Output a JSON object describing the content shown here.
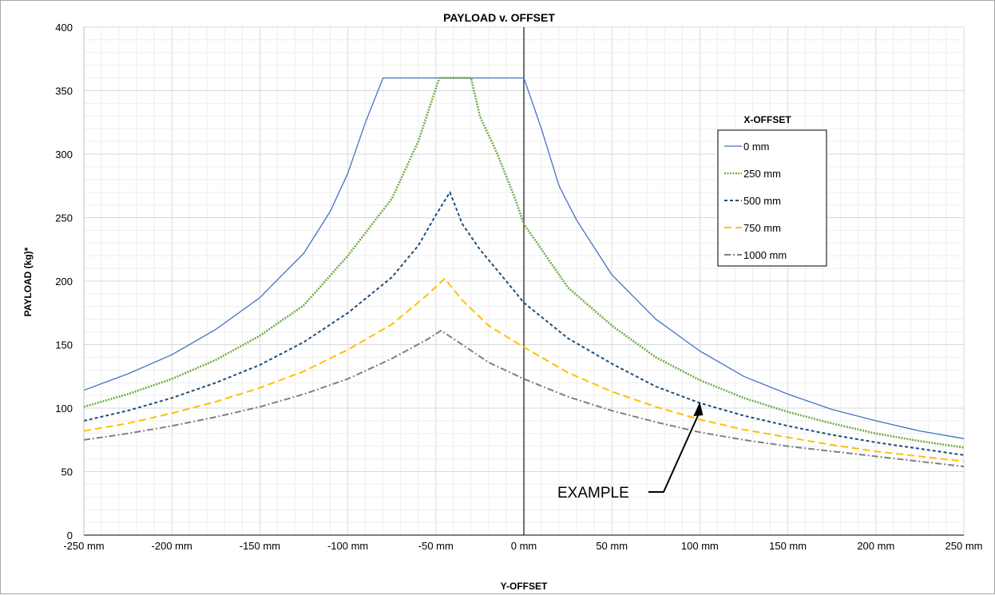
{
  "chart_data": {
    "type": "line",
    "title": "PAYLOAD v. OFFSET",
    "xlabel": "Y-OFFSET",
    "ylabel": "PAYLOAD (kg)*",
    "xlim": [
      -250,
      250
    ],
    "ylim": [
      0,
      400
    ],
    "x_ticks": [
      -250,
      -200,
      -150,
      -100,
      -50,
      0,
      50,
      100,
      150,
      200,
      250
    ],
    "x_tick_labels": [
      "-250 mm",
      "-200 mm",
      "-150 mm",
      "-100 mm",
      "-50 mm",
      "0 mm",
      "50 mm",
      "100 mm",
      "150 mm",
      "200 mm",
      "250 mm"
    ],
    "y_ticks": [
      0,
      50,
      100,
      150,
      200,
      250,
      300,
      350,
      400
    ],
    "y_tick_labels": [
      "0",
      "50",
      "100",
      "150",
      "200",
      "250",
      "300",
      "350",
      "400"
    ],
    "grid": true,
    "legend": {
      "title": "X-OFFSET",
      "position": "right"
    },
    "vertical_reference_line_x": 0,
    "annotation": {
      "text": "EXAMPLE",
      "target": {
        "x": 100,
        "y": 105
      }
    },
    "series": [
      {
        "name": "0 mm",
        "color": "#4472c4",
        "dash": "solid",
        "points": [
          [
            -250,
            114
          ],
          [
            -225,
            127
          ],
          [
            -200,
            142
          ],
          [
            -175,
            162
          ],
          [
            -150,
            187
          ],
          [
            -125,
            222
          ],
          [
            -110,
            255
          ],
          [
            -100,
            285
          ],
          [
            -90,
            325
          ],
          [
            -80,
            360
          ],
          [
            0,
            360
          ],
          [
            10,
            320
          ],
          [
            20,
            275
          ],
          [
            30,
            248
          ],
          [
            50,
            205
          ],
          [
            75,
            170
          ],
          [
            100,
            145
          ],
          [
            125,
            125
          ],
          [
            150,
            111
          ],
          [
            175,
            99
          ],
          [
            200,
            90
          ],
          [
            225,
            82
          ],
          [
            250,
            76
          ]
        ]
      },
      {
        "name": "250 mm",
        "color": "#70ad47",
        "dash": "dotted",
        "points": [
          [
            -250,
            101
          ],
          [
            -225,
            111
          ],
          [
            -200,
            123
          ],
          [
            -175,
            138
          ],
          [
            -150,
            157
          ],
          [
            -125,
            181
          ],
          [
            -100,
            220
          ],
          [
            -75,
            265
          ],
          [
            -60,
            310
          ],
          [
            -48,
            360
          ],
          [
            -30,
            360
          ],
          [
            -25,
            330
          ],
          [
            -15,
            300
          ],
          [
            -5,
            265
          ],
          [
            0,
            245
          ],
          [
            25,
            195
          ],
          [
            50,
            165
          ],
          [
            75,
            140
          ],
          [
            100,
            122
          ],
          [
            125,
            108
          ],
          [
            150,
            97
          ],
          [
            175,
            88
          ],
          [
            200,
            80
          ],
          [
            225,
            74
          ],
          [
            250,
            69
          ]
        ]
      },
      {
        "name": "500 mm",
        "color": "#1f4e79",
        "dash": "dashed",
        "points": [
          [
            -250,
            90
          ],
          [
            -225,
            98
          ],
          [
            -200,
            108
          ],
          [
            -175,
            120
          ],
          [
            -150,
            134
          ],
          [
            -125,
            152
          ],
          [
            -100,
            175
          ],
          [
            -75,
            203
          ],
          [
            -60,
            228
          ],
          [
            -50,
            252
          ],
          [
            -42,
            270
          ],
          [
            -35,
            245
          ],
          [
            -25,
            225
          ],
          [
            -10,
            200
          ],
          [
            0,
            183
          ],
          [
            25,
            155
          ],
          [
            50,
            135
          ],
          [
            75,
            117
          ],
          [
            100,
            104
          ],
          [
            125,
            94
          ],
          [
            150,
            86
          ],
          [
            175,
            79
          ],
          [
            200,
            73
          ],
          [
            225,
            68
          ],
          [
            250,
            63
          ]
        ]
      },
      {
        "name": "750 mm",
        "color": "#ffc000",
        "dash": "longdash",
        "points": [
          [
            -250,
            82
          ],
          [
            -225,
            88
          ],
          [
            -200,
            96
          ],
          [
            -175,
            105
          ],
          [
            -150,
            116
          ],
          [
            -125,
            129
          ],
          [
            -100,
            146
          ],
          [
            -75,
            166
          ],
          [
            -55,
            189
          ],
          [
            -45,
            202
          ],
          [
            -35,
            185
          ],
          [
            -20,
            165
          ],
          [
            0,
            148
          ],
          [
            25,
            128
          ],
          [
            50,
            113
          ],
          [
            75,
            101
          ],
          [
            100,
            91
          ],
          [
            125,
            83
          ],
          [
            150,
            77
          ],
          [
            175,
            71
          ],
          [
            200,
            66
          ],
          [
            225,
            62
          ],
          [
            250,
            58
          ]
        ]
      },
      {
        "name": "1000 mm",
        "color": "#7f7f7f",
        "dash": "dashdot",
        "points": [
          [
            -250,
            75
          ],
          [
            -225,
            80
          ],
          [
            -200,
            86
          ],
          [
            -175,
            93
          ],
          [
            -150,
            101
          ],
          [
            -125,
            111
          ],
          [
            -100,
            123
          ],
          [
            -75,
            139
          ],
          [
            -55,
            154
          ],
          [
            -47,
            161
          ],
          [
            -35,
            150
          ],
          [
            -20,
            136
          ],
          [
            0,
            123
          ],
          [
            25,
            109
          ],
          [
            50,
            98
          ],
          [
            75,
            89
          ],
          [
            100,
            81
          ],
          [
            125,
            75
          ],
          [
            150,
            70
          ],
          [
            175,
            66
          ],
          [
            200,
            62
          ],
          [
            225,
            58
          ],
          [
            250,
            54
          ]
        ]
      }
    ]
  }
}
